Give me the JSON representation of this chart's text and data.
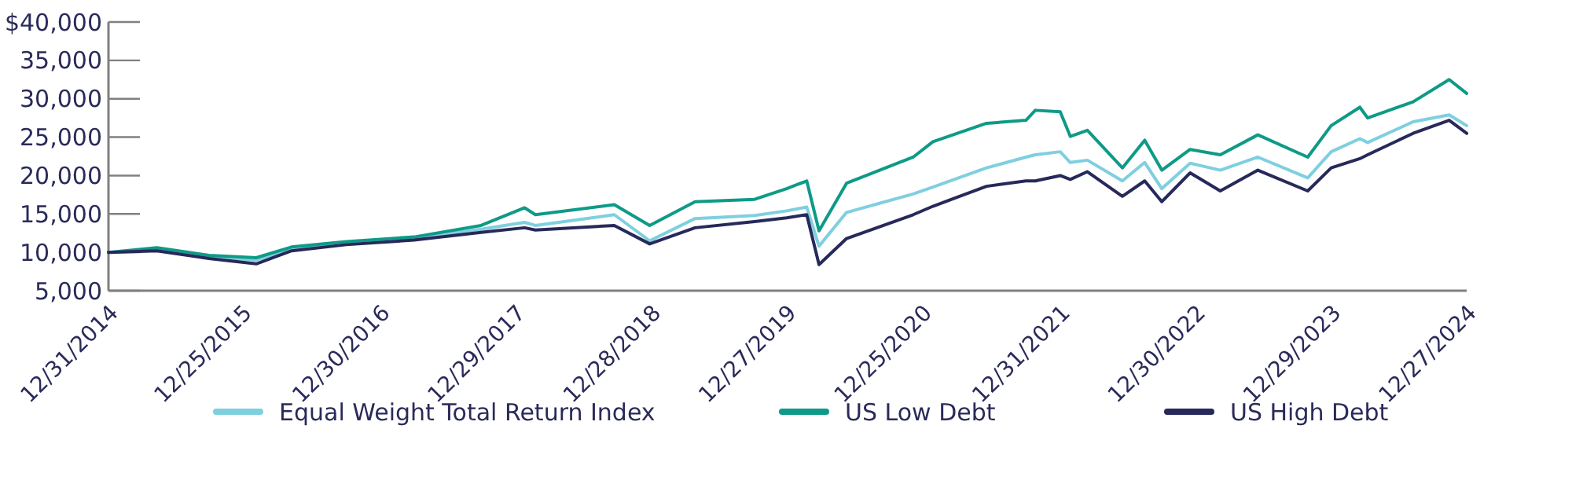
{
  "chart_data": {
    "type": "line",
    "x": [
      "2014-12-31",
      "2015-05-10",
      "2015-09-27",
      "2016-02-01",
      "2016-05-06",
      "2016-09-30",
      "2017-03-31",
      "2017-09-27",
      "2018-01-22",
      "2018-02-20",
      "2018-09-20",
      "2018-12-24",
      "2019-04-25",
      "2019-10-02",
      "2019-12-27",
      "2020-02-19",
      "2020-03-23",
      "2020-06-05",
      "2020-12-01",
      "2021-01-23",
      "2021-06-16",
      "2021-09-30",
      "2021-10-25",
      "2021-12-31",
      "2022-01-27",
      "2022-03-14",
      "2022-06-16",
      "2022-08-15",
      "2022-09-30",
      "2022-12-15",
      "2023-03-06",
      "2023-06-15",
      "2023-10-27",
      "2023-12-29",
      "2024-03-15",
      "2024-04-05",
      "2024-08-05",
      "2024-11-10",
      "2024-12-27"
    ],
    "series": [
      {
        "name": "Equal Weight Total Return Index",
        "color": "#7fcfdf",
        "values": [
          10000,
          10300,
          9400,
          9000,
          10400,
          11300,
          11800,
          13000,
          13900,
          13500,
          14900,
          11500,
          14400,
          14800,
          15400,
          15900,
          10800,
          15200,
          17600,
          18500,
          21000,
          22400,
          22700,
          23100,
          21700,
          22000,
          19300,
          21700,
          18300,
          21600,
          20700,
          22400,
          19700,
          23100,
          24800,
          24300,
          27000,
          27900,
          26500
        ]
      },
      {
        "name": "US Low Debt",
        "color": "#0e9a87",
        "values": [
          10000,
          10600,
          9600,
          9300,
          10700,
          11400,
          12000,
          13500,
          15800,
          14900,
          16200,
          13500,
          16600,
          16900,
          18300,
          19300,
          12800,
          19000,
          22400,
          24400,
          26800,
          27200,
          28500,
          28300,
          25100,
          25900,
          21000,
          24600,
          20700,
          23400,
          22700,
          25300,
          22400,
          26500,
          28900,
          27500,
          29600,
          32500,
          30700
        ]
      },
      {
        "name": "US High Debt",
        "color": "#27295a",
        "values": [
          10000,
          10200,
          9200,
          8500,
          10200,
          11000,
          11600,
          12600,
          13200,
          12900,
          13500,
          11100,
          13200,
          14000,
          14500,
          14900,
          8400,
          11800,
          14900,
          16000,
          18600,
          19300,
          19300,
          20000,
          19500,
          20500,
          17300,
          19300,
          16600,
          20350,
          18000,
          20700,
          18000,
          21000,
          22200,
          22700,
          25500,
          27200,
          25500
        ]
      }
    ],
    "xlim": [
      "2014-12-31",
      "2024-12-27"
    ],
    "xticks": [
      {
        "value": "2014-12-31",
        "label": "12/31/2014"
      },
      {
        "value": "2015-12-25",
        "label": "12/25/2015"
      },
      {
        "value": "2016-12-30",
        "label": "12/30/2016"
      },
      {
        "value": "2017-12-29",
        "label": "12/29/2017"
      },
      {
        "value": "2018-12-28",
        "label": "12/28/2018"
      },
      {
        "value": "2019-12-27",
        "label": "12/27/2019"
      },
      {
        "value": "2020-12-25",
        "label": "12/25/2020"
      },
      {
        "value": "2021-12-31",
        "label": "12/31/2021"
      },
      {
        "value": "2022-12-30",
        "label": "12/30/2022"
      },
      {
        "value": "2023-12-29",
        "label": "12/29/2023"
      },
      {
        "value": "2024-12-27",
        "label": "12/27/2024"
      }
    ],
    "ylim": [
      5000,
      40000
    ],
    "yticks": [
      {
        "value": 5000,
        "label": "5,000"
      },
      {
        "value": 10000,
        "label": "10,000"
      },
      {
        "value": 15000,
        "label": "15,000"
      },
      {
        "value": 20000,
        "label": "20,000"
      },
      {
        "value": 25000,
        "label": "25,000"
      },
      {
        "value": 30000,
        "label": "30,000"
      },
      {
        "value": 35000,
        "label": "35,000"
      },
      {
        "value": 40000,
        "label": "$40,000"
      }
    ],
    "grid": false,
    "legend": "bottom",
    "line_style": "solid"
  }
}
